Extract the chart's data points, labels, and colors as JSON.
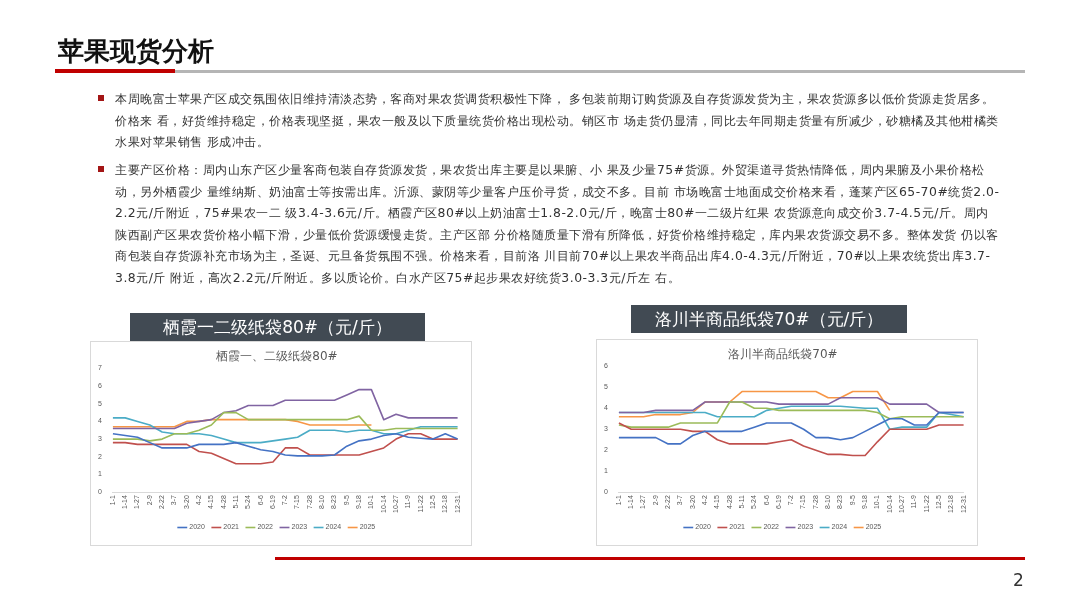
{
  "chart_data": [
    {
      "type": "line",
      "title": "栖霞一二级纸袋80#（元/斤）",
      "subtitle": "栖霞一、二级纸袋80#",
      "annotations": [
        "苹果现货分析",
        "本周晚富士苹果产区成交氛围依旧维持清淡态势，客商对果农货调货积极性下降， 多包装前期订购货源及自存货源发货为主，果农货源多以低价货源走货居多。价格来 看，好货维持稳定，价格表现坚挺，果农一般及以下质量统货价格出现松动。销区市 场走货仍显清，同比去年同期走货量有所减少，砂糖橘及其他柑橘类水果对苹果销售 形成冲击。",
        "主要产区价格：周内山东产区少量客商包装自存货源发货，果农货出库主要是以果腑、小 果及少量75#货源。外贸渠道寻货热情降低，周内果腑及小果价格松动，另外栖霞少 量维纳斯、奶油富士等按需出库。沂源、蒙阴等少量客户压价寻货，成交不多。目前 市场晚富士地面成交价格来看，蓬莱产区65-70#统货2.0-2.2元/斤附近，75#果农一二 级3.4-3.6元/斤。栖霞产区80#以上奶油富士1.8-2.0元/斤，晚富士80#一二级片红果 农货源意向成交价3.7-4.5元/斤。周内陕西副产区果农货价格小幅下滑，少量低价货源缓慢走货。主产区部 分价格随质量下滑有所降低，好货价格维持稳定，库内果农货源交易不多。整体发货 仍以客商包装自存货源补充市场为主，圣诞、元旦备货氛围不强。价格来看，目前洛 川目前70#以上果农半商品出库4.0-4.3元/斤附近，70#以上果农统货出库3.7-3.8元/斤 附近，高次2.2元/斤附近。多以质论价。白水产区75#起步果农好统货3.0-3.3元/斤左 右。",
        "2"
      ],
      "categories": [
        "1-1",
        "1-14",
        "1-27",
        "2-9",
        "2-22",
        "3-7",
        "3-20",
        "4-2",
        "4-15",
        "4-28",
        "5-11",
        "5-24",
        "6-6",
        "6-19",
        "7-2",
        "7-15",
        "7-28",
        "8-10",
        "8-23",
        "9-5",
        "9-18",
        "10-1",
        "10-14",
        "10-27",
        "11-9",
        "11-22",
        "12-5",
        "12-18",
        "12-31"
      ],
      "series": [
        {
          "name": "2020",
          "color": "#4472c4",
          "values": [
            3.3,
            3.2,
            3.1,
            2.8,
            2.5,
            2.5,
            2.5,
            2.7,
            2.7,
            2.7,
            2.8,
            2.6,
            2.4,
            2.3,
            2.1,
            2.05,
            2.05,
            2.05,
            2.1,
            2.6,
            2.9,
            3.0,
            3.2,
            3.3,
            3.1,
            3.05,
            3.0,
            3.3,
            3.0
          ]
        },
        {
          "name": "2021",
          "color": "#c0504d",
          "values": [
            2.8,
            2.8,
            2.7,
            2.7,
            2.7,
            2.7,
            2.7,
            2.3,
            2.2,
            1.9,
            1.6,
            1.6,
            1.6,
            1.7,
            2.5,
            2.5,
            2.1,
            2.1,
            2.1,
            2.1,
            2.1,
            2.3,
            2.5,
            3.0,
            3.3,
            3.3,
            3.0,
            3.0,
            3.0
          ]
        },
        {
          "name": "2022",
          "color": "#9bbb59",
          "values": [
            3.0,
            3.0,
            3.0,
            2.9,
            3.0,
            3.3,
            3.3,
            3.5,
            3.8,
            4.5,
            4.5,
            4.1,
            4.1,
            4.1,
            4.1,
            4.1,
            4.1,
            4.1,
            4.1,
            4.1,
            4.3,
            3.5,
            3.5,
            3.6,
            3.6,
            3.6,
            3.6,
            3.6,
            3.6
          ]
        },
        {
          "name": "2023",
          "color": "#8064a2",
          "values": [
            3.6,
            3.6,
            3.6,
            3.6,
            3.6,
            3.6,
            3.9,
            4.0,
            4.1,
            4.5,
            4.6,
            4.9,
            4.9,
            4.9,
            5.2,
            5.2,
            5.2,
            5.2,
            5.2,
            5.5,
            5.8,
            5.8,
            4.1,
            4.4,
            4.2,
            4.2,
            4.2,
            4.2,
            4.2
          ]
        },
        {
          "name": "2024",
          "color": "#4bacc6",
          "values": [
            4.2,
            4.2,
            4.0,
            3.8,
            3.4,
            3.3,
            3.3,
            3.3,
            3.2,
            3.0,
            2.8,
            2.8,
            2.8,
            2.9,
            3.0,
            3.1,
            3.5,
            3.5,
            3.5,
            3.4,
            3.5,
            3.5,
            3.3,
            3.3,
            3.5,
            3.7,
            3.7,
            3.7,
            3.7
          ]
        },
        {
          "name": "2025",
          "color": "#f79646",
          "values": [
            3.7,
            3.7,
            3.7,
            3.7,
            3.7,
            3.7,
            4.0,
            4.0,
            4.1,
            4.1,
            4.1,
            4.1,
            4.1,
            4.1,
            4.1,
            4.0,
            3.8,
            3.8,
            3.8,
            3.8,
            3.8,
            3.8,
            null,
            null,
            null,
            null,
            null,
            null,
            null
          ]
        }
      ],
      "ylim": [
        0,
        7
      ],
      "yticks": [
        0,
        1,
        2,
        3,
        4,
        5,
        6,
        7
      ],
      "legend": "bottom",
      "marker": "none",
      "grid": false
    },
    {
      "type": "line",
      "title": "洛川半商品纸袋70#（元/斤）",
      "subtitle": "洛川半商品纸袋70#",
      "categories": [
        "1-1",
        "1-14",
        "1-27",
        "2-9",
        "2-22",
        "3-7",
        "3-20",
        "4-2",
        "4-15",
        "4-28",
        "5-11",
        "5-24",
        "6-6",
        "6-19",
        "7-2",
        "7-15",
        "7-28",
        "8-10",
        "8-23",
        "9-5",
        "9-18",
        "10-1",
        "10-14",
        "10-27",
        "11-9",
        "11-22",
        "12-5",
        "12-18",
        "12-31"
      ],
      "series": [
        {
          "name": "2020",
          "color": "#4472c4",
          "values": [
            2.6,
            2.6,
            2.6,
            2.6,
            2.3,
            2.3,
            2.7,
            2.9,
            2.9,
            2.9,
            2.9,
            3.1,
            3.3,
            3.3,
            3.3,
            3.0,
            2.6,
            2.6,
            2.5,
            2.6,
            2.9,
            3.2,
            3.5,
            3.5,
            3.2,
            3.2,
            3.8,
            3.8,
            3.8
          ]
        },
        {
          "name": "2021",
          "color": "#c0504d",
          "values": [
            3.3,
            3.0,
            3.0,
            3.0,
            3.0,
            3.0,
            2.9,
            2.9,
            2.5,
            2.3,
            2.3,
            2.3,
            2.3,
            2.4,
            2.5,
            2.2,
            2.0,
            1.8,
            1.8,
            1.75,
            1.75,
            2.4,
            3.0,
            3.0,
            3.0,
            3.0,
            3.2,
            3.2,
            3.2
          ]
        },
        {
          "name": "2022",
          "color": "#9bbb59",
          "values": [
            3.2,
            3.1,
            3.1,
            3.1,
            3.1,
            3.3,
            3.3,
            3.3,
            3.3,
            4.3,
            4.3,
            4.0,
            4.0,
            3.9,
            3.9,
            3.9,
            3.9,
            3.9,
            3.9,
            3.9,
            3.9,
            3.8,
            3.5,
            3.6,
            3.6,
            3.6,
            3.6,
            3.6,
            3.6
          ]
        },
        {
          "name": "2023",
          "color": "#8064a2",
          "values": [
            3.8,
            3.8,
            3.8,
            3.9,
            3.9,
            3.9,
            3.9,
            4.3,
            4.3,
            4.3,
            4.3,
            4.3,
            4.3,
            4.2,
            4.2,
            4.2,
            4.2,
            4.2,
            4.5,
            4.5,
            4.5,
            4.5,
            4.2,
            4.2,
            4.2,
            4.2,
            3.8,
            3.8,
            3.8
          ]
        },
        {
          "name": "2024",
          "color": "#4bacc6",
          "values": [
            3.8,
            3.8,
            3.8,
            3.8,
            3.8,
            3.8,
            3.8,
            3.8,
            3.6,
            3.6,
            3.6,
            3.6,
            3.9,
            4.0,
            4.1,
            4.1,
            4.1,
            4.1,
            4.1,
            4.05,
            4.0,
            4.0,
            3.0,
            3.1,
            3.1,
            3.1,
            3.8,
            3.7,
            3.6
          ]
        },
        {
          "name": "2025",
          "color": "#f79646",
          "values": [
            3.6,
            3.6,
            3.6,
            3.7,
            3.7,
            3.7,
            3.8,
            4.3,
            4.3,
            4.3,
            4.8,
            4.8,
            4.8,
            4.8,
            4.8,
            4.8,
            4.8,
            4.5,
            4.5,
            4.8,
            4.8,
            4.8,
            3.9,
            null,
            null,
            null,
            null,
            null,
            null
          ]
        }
      ],
      "ylim": [
        0,
        6
      ],
      "yticks": [
        0,
        1,
        2,
        3,
        4,
        5,
        6
      ],
      "legend": "bottom",
      "marker": "none",
      "grid": false
    }
  ]
}
